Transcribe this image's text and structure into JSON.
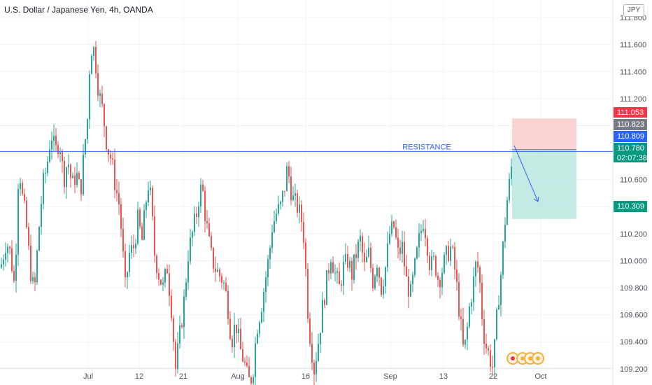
{
  "header": {
    "title": "U.S. Dollar / Japanese Yen, 4h, OANDA",
    "currency": "JPY"
  },
  "colors": {
    "up": "#26a69a",
    "down": "#ef5350",
    "grid": "#f0f3fa",
    "resistance": "#2962ff",
    "stop_zone": "#f8c9c7",
    "target_zone": "#b7e3dc",
    "entry_badge": "#787b86",
    "stop_badge": "#f23645",
    "target_badge": "#089981",
    "current_badge": "#089981",
    "resistance_badge": "#2962ff"
  },
  "chart_data": {
    "type": "candlestick",
    "title": "U.S. Dollar / Japanese Yen, 4h, OANDA",
    "ylim": [
      109.08,
      111.93
    ],
    "y_ticks": [
      "111.800",
      "111.600",
      "111.400",
      "111.200",
      "111.000",
      "110.800",
      "110.600",
      "110.400",
      "110.200",
      "110.000",
      "109.800",
      "109.600",
      "109.400",
      "109.200"
    ],
    "x_tick_labels": [
      "Jul",
      "12",
      "21",
      "Aug",
      "16",
      "Sep",
      "13",
      "22",
      "Oct"
    ],
    "grid": true,
    "price_path": [
      [
        0,
        109.95
      ],
      [
        8,
        110.15
      ],
      [
        14,
        110.05
      ],
      [
        20,
        109.8
      ],
      [
        26,
        110.75
      ],
      [
        30,
        110.5
      ],
      [
        36,
        110.3
      ],
      [
        42,
        109.95
      ],
      [
        48,
        109.75
      ],
      [
        54,
        110.2
      ],
      [
        60,
        110.55
      ],
      [
        66,
        110.7
      ],
      [
        72,
        110.95
      ],
      [
        78,
        110.8
      ],
      [
        84,
        110.9
      ],
      [
        90,
        110.6
      ],
      [
        96,
        110.75
      ],
      [
        102,
        110.55
      ],
      [
        108,
        110.65
      ],
      [
        114,
        110.5
      ],
      [
        120,
        110.85
      ],
      [
        124,
        111.05
      ],
      [
        128,
        111.55
      ],
      [
        132,
        111.6
      ],
      [
        136,
        111.45
      ],
      [
        140,
        111.25
      ],
      [
        146,
        111.1
      ],
      [
        152,
        110.85
      ],
      [
        158,
        110.75
      ],
      [
        164,
        110.55
      ],
      [
        170,
        110.4
      ],
      [
        174,
        110.1
      ],
      [
        178,
        109.8
      ],
      [
        184,
        110.05
      ],
      [
        190,
        110.1
      ],
      [
        196,
        110.3
      ],
      [
        202,
        110.15
      ],
      [
        208,
        110.45
      ],
      [
        212,
        110.6
      ],
      [
        216,
        110.35
      ],
      [
        220,
        110.05
      ],
      [
        226,
        109.9
      ],
      [
        232,
        109.8
      ],
      [
        238,
        109.95
      ],
      [
        244,
        109.65
      ],
      [
        250,
        109.2
      ],
      [
        256,
        109.45
      ],
      [
        262,
        109.7
      ],
      [
        268,
        110.05
      ],
      [
        274,
        110.2
      ],
      [
        280,
        110.35
      ],
      [
        284,
        110.5
      ],
      [
        288,
        110.55
      ],
      [
        292,
        110.35
      ],
      [
        296,
        110.2
      ],
      [
        300,
        110.05
      ],
      [
        306,
        109.95
      ],
      [
        312,
        109.9
      ],
      [
        318,
        109.85
      ],
      [
        324,
        109.7
      ],
      [
        330,
        109.4
      ],
      [
        336,
        109.55
      ],
      [
        342,
        109.35
      ],
      [
        348,
        109.25
      ],
      [
        354,
        109.1
      ],
      [
        360,
        109.15
      ],
      [
        366,
        109.5
      ],
      [
        372,
        109.65
      ],
      [
        378,
        109.85
      ],
      [
        384,
        110.05
      ],
      [
        388,
        110.25
      ],
      [
        394,
        110.35
      ],
      [
        400,
        110.4
      ],
      [
        406,
        110.55
      ],
      [
        410,
        110.7
      ],
      [
        414,
        110.55
      ],
      [
        418,
        110.45
      ],
      [
        424,
        110.4
      ],
      [
        430,
        110.3
      ],
      [
        434,
        110.15
      ],
      [
        438,
        109.7
      ],
      [
        442,
        109.45
      ],
      [
        448,
        109.2
      ],
      [
        454,
        109.4
      ],
      [
        460,
        109.65
      ],
      [
        466,
        109.85
      ],
      [
        472,
        110.05
      ],
      [
        478,
        109.9
      ],
      [
        484,
        109.8
      ],
      [
        490,
        109.95
      ],
      [
        496,
        110.0
      ],
      [
        502,
        109.9
      ],
      [
        508,
        110.05
      ],
      [
        514,
        110.15
      ],
      [
        520,
        109.95
      ],
      [
        526,
        110.05
      ],
      [
        532,
        109.85
      ],
      [
        538,
        110.0
      ],
      [
        544,
        109.8
      ],
      [
        550,
        109.95
      ],
      [
        556,
        110.2
      ],
      [
        562,
        110.25
      ],
      [
        568,
        110.05
      ],
      [
        574,
        110.1
      ],
      [
        580,
        109.85
      ],
      [
        586,
        109.75
      ],
      [
        592,
        109.95
      ],
      [
        598,
        110.15
      ],
      [
        604,
        110.3
      ],
      [
        608,
        110.2
      ],
      [
        614,
        109.95
      ],
      [
        620,
        110.0
      ],
      [
        626,
        109.85
      ],
      [
        632,
        109.95
      ],
      [
        638,
        110.05
      ],
      [
        644,
        110.1
      ],
      [
        650,
        109.9
      ],
      [
        656,
        109.6
      ],
      [
        662,
        109.3
      ],
      [
        666,
        109.45
      ],
      [
        670,
        109.65
      ],
      [
        676,
        109.85
      ],
      [
        680,
        110.0
      ],
      [
        684,
        109.9
      ],
      [
        688,
        109.6
      ],
      [
        692,
        109.4
      ],
      [
        698,
        109.3
      ],
      [
        704,
        109.2
      ],
      [
        708,
        109.5
      ],
      [
        712,
        109.75
      ],
      [
        716,
        109.95
      ],
      [
        720,
        110.25
      ],
      [
        724,
        110.45
      ],
      [
        728,
        110.6
      ],
      [
        732,
        110.78
      ]
    ]
  },
  "annotations": {
    "resistance_label": "RESISTANCE"
  },
  "price_labels": {
    "stop": "111.053",
    "entry": "110.823",
    "resistance": "110.809",
    "current": "110.780",
    "countdown": "02:07:38",
    "target": "110.309"
  },
  "trade": {
    "entry": 110.823,
    "stop": 111.053,
    "target": 110.309,
    "resistance": 110.809,
    "current": 110.78
  },
  "footer_icons": [
    "flag-icon",
    "event-icon",
    "event-icon",
    "event-icon"
  ]
}
